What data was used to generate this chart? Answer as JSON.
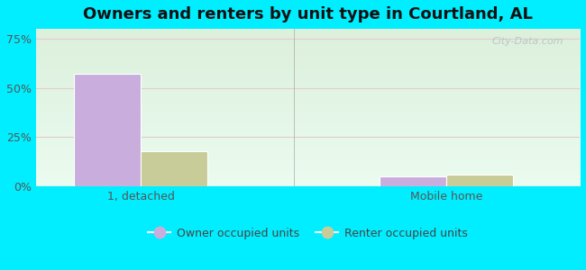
{
  "title": "Owners and renters by unit type in Courtland, AL",
  "categories": [
    "1, detached",
    "Mobile home"
  ],
  "owner_values": [
    57,
    5
  ],
  "renter_values": [
    18,
    6
  ],
  "owner_color": "#c9aedd",
  "renter_color": "#c8cc99",
  "background_color": "#00eeff",
  "yticks": [
    0,
    25,
    50,
    75
  ],
  "ylim": [
    0,
    80
  ],
  "bar_width": 0.35,
  "legend_labels": [
    "Owner occupied units",
    "Renter occupied units"
  ],
  "watermark": "City-Data.com",
  "title_fontsize": 13,
  "tick_fontsize": 9,
  "legend_fontsize": 9,
  "group_positions": [
    0.5,
    2.1
  ],
  "xlim": [
    -0.05,
    2.8
  ]
}
